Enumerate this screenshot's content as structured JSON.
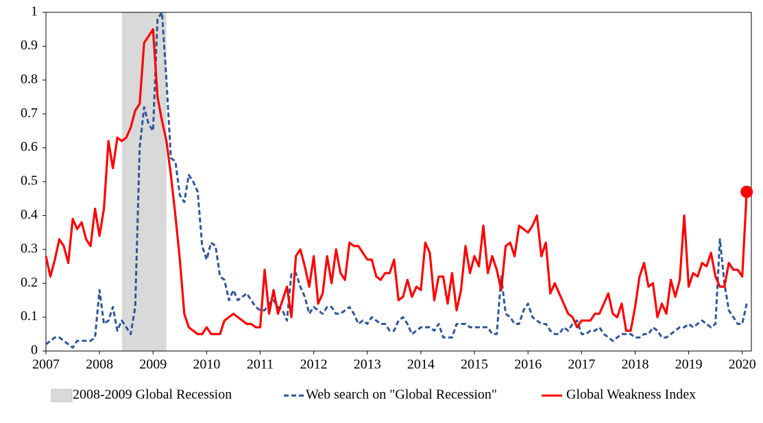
{
  "chart_data": {
    "type": "line",
    "x": [
      2007,
      2007.083,
      2007.167,
      2007.25,
      2007.333,
      2007.417,
      2007.5,
      2007.583,
      2007.667,
      2007.75,
      2007.833,
      2007.917,
      2008,
      2008.083,
      2008.167,
      2008.25,
      2008.333,
      2008.417,
      2008.5,
      2008.583,
      2008.667,
      2008.75,
      2008.833,
      2008.917,
      2009,
      2009.083,
      2009.167,
      2009.25,
      2009.333,
      2009.417,
      2009.5,
      2009.583,
      2009.667,
      2009.75,
      2009.833,
      2009.917,
      2010,
      2010.083,
      2010.167,
      2010.25,
      2010.333,
      2010.417,
      2010.5,
      2010.583,
      2010.667,
      2010.75,
      2010.833,
      2010.917,
      2011,
      2011.083,
      2011.167,
      2011.25,
      2011.333,
      2011.417,
      2011.5,
      2011.583,
      2011.667,
      2011.75,
      2011.833,
      2011.917,
      2012,
      2012.083,
      2012.167,
      2012.25,
      2012.333,
      2012.417,
      2012.5,
      2012.583,
      2012.667,
      2012.75,
      2012.833,
      2012.917,
      2013,
      2013.083,
      2013.167,
      2013.25,
      2013.333,
      2013.417,
      2013.5,
      2013.583,
      2013.667,
      2013.75,
      2013.833,
      2013.917,
      2014,
      2014.083,
      2014.167,
      2014.25,
      2014.333,
      2014.417,
      2014.5,
      2014.583,
      2014.667,
      2014.75,
      2014.833,
      2014.917,
      2015,
      2015.083,
      2015.167,
      2015.25,
      2015.333,
      2015.417,
      2015.5,
      2015.583,
      2015.667,
      2015.75,
      2015.833,
      2015.917,
      2016,
      2016.083,
      2016.167,
      2016.25,
      2016.333,
      2016.417,
      2016.5,
      2016.583,
      2016.667,
      2016.75,
      2016.833,
      2016.917,
      2017,
      2017.083,
      2017.167,
      2017.25,
      2017.333,
      2017.417,
      2017.5,
      2017.583,
      2017.667,
      2017.75,
      2017.833,
      2017.917,
      2018,
      2018.083,
      2018.167,
      2018.25,
      2018.333,
      2018.417,
      2018.5,
      2018.583,
      2018.667,
      2018.75,
      2018.833,
      2018.917,
      2019,
      2019.083,
      2019.167,
      2019.25,
      2019.333,
      2019.417,
      2019.5,
      2019.583,
      2019.667,
      2019.75,
      2019.833,
      2019.917,
      2020,
      2020.083
    ],
    "series": [
      {
        "name": "Web search on \"Global Recession\"",
        "color": "#2f5597",
        "dash": true,
        "values": [
          0.02,
          0.03,
          0.04,
          0.04,
          0.03,
          0.02,
          0.01,
          0.03,
          0.03,
          0.03,
          0.03,
          0.04,
          0.18,
          0.08,
          0.09,
          0.13,
          0.06,
          0.09,
          0.07,
          0.05,
          0.13,
          0.6,
          0.72,
          0.67,
          0.65,
          0.98,
          1.0,
          0.8,
          0.57,
          0.56,
          0.46,
          0.44,
          0.52,
          0.5,
          0.47,
          0.31,
          0.27,
          0.32,
          0.31,
          0.22,
          0.21,
          0.15,
          0.18,
          0.15,
          0.16,
          0.17,
          0.15,
          0.13,
          0.12,
          0.12,
          0.14,
          0.15,
          0.13,
          0.12,
          0.09,
          0.23,
          0.23,
          0.19,
          0.16,
          0.11,
          0.13,
          0.12,
          0.11,
          0.13,
          0.13,
          0.11,
          0.11,
          0.12,
          0.13,
          0.11,
          0.08,
          0.09,
          0.08,
          0.1,
          0.09,
          0.08,
          0.08,
          0.06,
          0.06,
          0.09,
          0.1,
          0.08,
          0.05,
          0.06,
          0.07,
          0.07,
          0.07,
          0.06,
          0.08,
          0.04,
          0.04,
          0.04,
          0.08,
          0.08,
          0.08,
          0.07,
          0.07,
          0.07,
          0.07,
          0.07,
          0.05,
          0.05,
          0.22,
          0.11,
          0.1,
          0.08,
          0.08,
          0.12,
          0.14,
          0.1,
          0.09,
          0.08,
          0.08,
          0.06,
          0.05,
          0.05,
          0.07,
          0.06,
          0.08,
          0.09,
          0.05,
          0.05,
          0.06,
          0.06,
          0.07,
          0.05,
          0.04,
          0.03,
          0.04,
          0.05,
          0.05,
          0.05,
          0.04,
          0.04,
          0.05,
          0.05,
          0.07,
          0.06,
          0.04,
          0.04,
          0.05,
          0.06,
          0.07,
          0.07,
          0.08,
          0.07,
          0.08,
          0.09,
          0.08,
          0.07,
          0.08,
          0.33,
          0.2,
          0.12,
          0.1,
          0.08,
          0.08,
          0.14
        ]
      },
      {
        "name": "Global Weakness Index",
        "color": "#ff0000",
        "dash": false,
        "end_marker": true,
        "values": [
          0.28,
          0.22,
          0.27,
          0.33,
          0.31,
          0.26,
          0.39,
          0.36,
          0.38,
          0.33,
          0.31,
          0.42,
          0.34,
          0.42,
          0.62,
          0.54,
          0.63,
          0.62,
          0.63,
          0.66,
          0.71,
          0.73,
          0.91,
          0.93,
          0.95,
          0.75,
          0.68,
          0.62,
          0.52,
          0.4,
          0.27,
          0.11,
          0.07,
          0.06,
          0.05,
          0.05,
          0.07,
          0.05,
          0.05,
          0.05,
          0.09,
          0.1,
          0.11,
          0.1,
          0.09,
          0.08,
          0.08,
          0.07,
          0.07,
          0.24,
          0.11,
          0.18,
          0.11,
          0.15,
          0.19,
          0.1,
          0.28,
          0.3,
          0.25,
          0.19,
          0.28,
          0.14,
          0.17,
          0.28,
          0.2,
          0.3,
          0.23,
          0.21,
          0.32,
          0.31,
          0.31,
          0.29,
          0.27,
          0.27,
          0.22,
          0.21,
          0.23,
          0.23,
          0.27,
          0.15,
          0.16,
          0.21,
          0.16,
          0.19,
          0.18,
          0.32,
          0.29,
          0.15,
          0.22,
          0.22,
          0.14,
          0.23,
          0.12,
          0.18,
          0.31,
          0.23,
          0.28,
          0.25,
          0.37,
          0.23,
          0.28,
          0.24,
          0.18,
          0.31,
          0.32,
          0.28,
          0.37,
          0.36,
          0.35,
          0.37,
          0.4,
          0.28,
          0.32,
          0.17,
          0.2,
          0.17,
          0.14,
          0.11,
          0.1,
          0.07,
          0.09,
          0.09,
          0.09,
          0.11,
          0.11,
          0.14,
          0.17,
          0.11,
          0.1,
          0.14,
          0.06,
          0.06,
          0.13,
          0.22,
          0.26,
          0.19,
          0.2,
          0.1,
          0.14,
          0.11,
          0.21,
          0.16,
          0.21,
          0.4,
          0.19,
          0.23,
          0.22,
          0.26,
          0.25,
          0.29,
          0.22,
          0.19,
          0.19,
          0.26,
          0.24,
          0.24,
          0.22,
          0.47
        ]
      }
    ],
    "shaded_band": {
      "label": "2008-2009 Global Recession",
      "start": 2008.42,
      "end": 2009.25,
      "color": "#d9d9d9"
    },
    "xlim": [
      2007,
      2020.17
    ],
    "xticks": [
      2007,
      2008,
      2009,
      2010,
      2011,
      2012,
      2013,
      2014,
      2015,
      2016,
      2017,
      2018,
      2019,
      2020
    ],
    "ylim": [
      0,
      1
    ],
    "yticks": [
      0,
      0.1,
      0.2,
      0.3,
      0.4,
      0.5,
      0.6,
      0.7,
      0.8,
      0.9,
      1
    ],
    "grid": false,
    "legend": "bottom"
  }
}
